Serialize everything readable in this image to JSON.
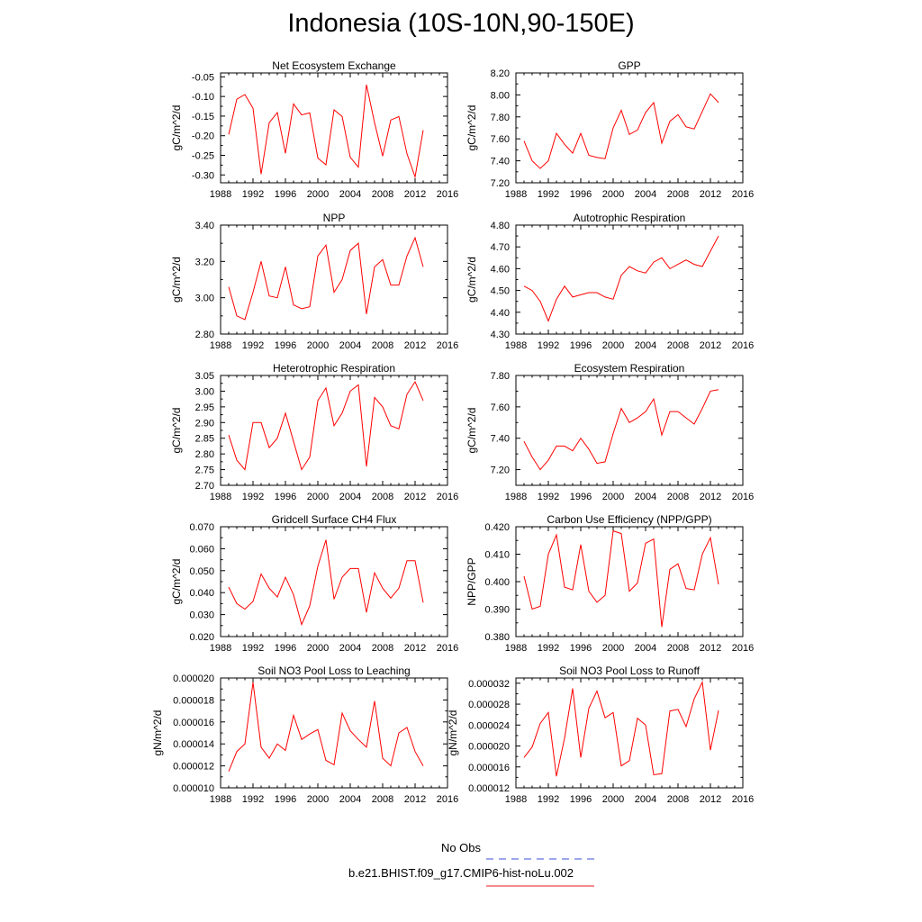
{
  "figure": {
    "title": "Indonesia (10S-10N,90-150E)",
    "legend": [
      {
        "label": "No Obs",
        "color": "#3b4fd8",
        "dash": true
      },
      {
        "label": "b.e21.BHIST.f09_g17.CMIP6-hist-noLu.002",
        "color": "#e8191e",
        "dash": false
      }
    ],
    "series_color": "#ff0000"
  },
  "chart_data": [
    {
      "type": "line",
      "title": "Net Ecosystem Exchange",
      "ylabel": "gC/m^2/d",
      "xlim": [
        1988,
        2016
      ],
      "ylim": [
        -0.32,
        -0.04
      ],
      "xticks": [
        "1988",
        "1992",
        "1996",
        "2000",
        "2004",
        "2008",
        "2012",
        "2016"
      ],
      "yticks": [
        "-0.05",
        "-0.10",
        "-0.15",
        "-0.20",
        "-0.25",
        "-0.30"
      ],
      "x": [
        1989,
        1990,
        1991,
        1992,
        1993,
        1994,
        1995,
        1996,
        1997,
        1998,
        1999,
        2000,
        2001,
        2002,
        2003,
        2004,
        2005,
        2006,
        2007,
        2008,
        2009,
        2010,
        2011,
        2012,
        2013
      ],
      "y": [
        -0.197,
        -0.107,
        -0.095,
        -0.13,
        -0.298,
        -0.167,
        -0.141,
        -0.245,
        -0.119,
        -0.147,
        -0.142,
        -0.257,
        -0.274,
        -0.134,
        -0.151,
        -0.255,
        -0.28,
        -0.07,
        -0.167,
        -0.252,
        -0.16,
        -0.151,
        -0.246,
        -0.305,
        -0.186
      ]
    },
    {
      "type": "line",
      "title": "GPP",
      "ylabel": "gC/m^2/d",
      "xlim": [
        1988,
        2016
      ],
      "ylim": [
        7.2,
        8.2
      ],
      "xticks": [
        "1988",
        "1992",
        "1996",
        "2000",
        "2004",
        "2008",
        "2012",
        "2016"
      ],
      "yticks": [
        "8.20",
        "8.00",
        "7.80",
        "7.60",
        "7.40",
        "7.20"
      ],
      "x": [
        1989,
        1990,
        1991,
        1992,
        1993,
        1994,
        1995,
        1996,
        1997,
        1998,
        1999,
        2000,
        2001,
        2002,
        2003,
        2004,
        2005,
        2006,
        2007,
        2008,
        2009,
        2010,
        2011,
        2012,
        2013
      ],
      "y": [
        7.58,
        7.4,
        7.33,
        7.4,
        7.65,
        7.55,
        7.47,
        7.65,
        7.45,
        7.43,
        7.42,
        7.7,
        7.86,
        7.64,
        7.68,
        7.84,
        7.93,
        7.56,
        7.76,
        7.82,
        7.71,
        7.69,
        7.85,
        8.01,
        7.93
      ]
    },
    {
      "type": "line",
      "title": "NPP",
      "ylabel": "gC/m^2/d",
      "xlim": [
        1988,
        2016
      ],
      "ylim": [
        2.8,
        3.4
      ],
      "xticks": [
        "1988",
        "1992",
        "1996",
        "2000",
        "2004",
        "2008",
        "2012",
        "2016"
      ],
      "yticks": [
        "3.40",
        "3.20",
        "3.00",
        "2.80"
      ],
      "x": [
        1989,
        1990,
        1991,
        1992,
        1993,
        1994,
        1995,
        1996,
        1997,
        1998,
        1999,
        2000,
        2001,
        2002,
        2003,
        2004,
        2005,
        2006,
        2007,
        2008,
        2009,
        2010,
        2011,
        2012,
        2013
      ],
      "y": [
        3.06,
        2.9,
        2.88,
        3.03,
        3.2,
        3.01,
        3.0,
        3.17,
        2.96,
        2.94,
        2.95,
        3.23,
        3.29,
        3.03,
        3.1,
        3.26,
        3.3,
        2.91,
        3.17,
        3.21,
        3.07,
        3.07,
        3.23,
        3.33,
        3.17
      ]
    },
    {
      "type": "line",
      "title": "Autotrophic Respiration",
      "ylabel": "gC/m^2/d",
      "xlim": [
        1988,
        2016
      ],
      "ylim": [
        4.3,
        4.8
      ],
      "xticks": [
        "1988",
        "1992",
        "1996",
        "2000",
        "2004",
        "2008",
        "2012",
        "2016"
      ],
      "yticks": [
        "4.80",
        "4.70",
        "4.60",
        "4.50",
        "4.40",
        "4.30"
      ],
      "x": [
        1989,
        1990,
        1991,
        1992,
        1993,
        1994,
        1995,
        1996,
        1997,
        1998,
        1999,
        2000,
        2001,
        2002,
        2003,
        2004,
        2005,
        2006,
        2007,
        2008,
        2009,
        2010,
        2011,
        2012,
        2013
      ],
      "y": [
        4.52,
        4.5,
        4.45,
        4.36,
        4.46,
        4.52,
        4.47,
        4.48,
        4.49,
        4.49,
        4.47,
        4.46,
        4.57,
        4.61,
        4.59,
        4.58,
        4.63,
        4.65,
        4.6,
        4.62,
        4.64,
        4.62,
        4.61,
        4.68,
        4.75
      ]
    },
    {
      "type": "line",
      "title": "Heterotrophic Respiration",
      "ylabel": "gC/m^2/d",
      "xlim": [
        1988,
        2016
      ],
      "ylim": [
        2.7,
        3.05
      ],
      "xticks": [
        "1988",
        "1992",
        "1996",
        "2000",
        "2004",
        "2008",
        "2012",
        "2016"
      ],
      "yticks": [
        "3.05",
        "3.00",
        "2.95",
        "2.90",
        "2.85",
        "2.80",
        "2.75",
        "2.70"
      ],
      "x": [
        1989,
        1990,
        1991,
        1992,
        1993,
        1994,
        1995,
        1996,
        1997,
        1998,
        1999,
        2000,
        2001,
        2002,
        2003,
        2004,
        2005,
        2006,
        2007,
        2008,
        2009,
        2010,
        2011,
        2012,
        2013
      ],
      "y": [
        2.86,
        2.78,
        2.75,
        2.9,
        2.9,
        2.82,
        2.85,
        2.93,
        2.84,
        2.75,
        2.79,
        2.97,
        3.01,
        2.89,
        2.93,
        3.0,
        3.02,
        2.76,
        2.98,
        2.95,
        2.89,
        2.88,
        2.99,
        3.03,
        2.97
      ]
    },
    {
      "type": "line",
      "title": "Ecosystem Respiration",
      "ylabel": "gC/m^2/d",
      "xlim": [
        1988,
        2016
      ],
      "ylim": [
        7.1,
        7.8
      ],
      "xticks": [
        "1988",
        "1992",
        "1996",
        "2000",
        "2004",
        "2008",
        "2012",
        "2016"
      ],
      "yticks": [
        "7.80",
        "7.60",
        "7.40",
        "7.20"
      ],
      "x": [
        1989,
        1990,
        1991,
        1992,
        1993,
        1994,
        1995,
        1996,
        1997,
        1998,
        1999,
        2000,
        2001,
        2002,
        2003,
        2004,
        2005,
        2006,
        2007,
        2008,
        2009,
        2010,
        2011,
        2012,
        2013
      ],
      "y": [
        7.38,
        7.28,
        7.2,
        7.26,
        7.35,
        7.35,
        7.32,
        7.4,
        7.33,
        7.24,
        7.25,
        7.43,
        7.59,
        7.5,
        7.53,
        7.57,
        7.65,
        7.42,
        7.57,
        7.57,
        7.53,
        7.49,
        7.59,
        7.7,
        7.71
      ]
    },
    {
      "type": "line",
      "title": "Gridcell Surface CH4 Flux",
      "ylabel": "gC/m^2/d",
      "xlim": [
        1988,
        2016
      ],
      "ylim": [
        0.02,
        0.07
      ],
      "xticks": [
        "1988",
        "1992",
        "1996",
        "2000",
        "2004",
        "2008",
        "2012",
        "2016"
      ],
      "yticks": [
        "0.070",
        "0.060",
        "0.050",
        "0.040",
        "0.030",
        "0.020"
      ],
      "x": [
        1989,
        1990,
        1991,
        1992,
        1993,
        1994,
        1995,
        1996,
        1997,
        1998,
        1999,
        2000,
        2001,
        2002,
        2003,
        2004,
        2005,
        2006,
        2007,
        2008,
        2009,
        2010,
        2011,
        2012,
        2013
      ],
      "y": [
        0.0425,
        0.035,
        0.0325,
        0.036,
        0.0485,
        0.042,
        0.038,
        0.047,
        0.039,
        0.0255,
        0.034,
        0.052,
        0.064,
        0.037,
        0.047,
        0.051,
        0.051,
        0.031,
        0.049,
        0.042,
        0.0375,
        0.042,
        0.0545,
        0.0545,
        0.0355
      ]
    },
    {
      "type": "line",
      "title": "Carbon Use Efficiency (NPP/GPP)",
      "ylabel": "NPP/GPP",
      "xlim": [
        1988,
        2016
      ],
      "ylim": [
        0.38,
        0.42
      ],
      "xticks": [
        "1988",
        "1992",
        "1996",
        "2000",
        "2004",
        "2008",
        "2012",
        "2016"
      ],
      "yticks": [
        "0.420",
        "0.410",
        "0.400",
        "0.390",
        "0.380"
      ],
      "x": [
        1989,
        1990,
        1991,
        1992,
        1993,
        1994,
        1995,
        1996,
        1997,
        1998,
        1999,
        2000,
        2001,
        2002,
        2003,
        2004,
        2005,
        2006,
        2007,
        2008,
        2009,
        2010,
        2011,
        2012,
        2013
      ],
      "y": [
        0.402,
        0.39,
        0.391,
        0.41,
        0.417,
        0.398,
        0.397,
        0.4135,
        0.3965,
        0.3925,
        0.395,
        0.4185,
        0.4175,
        0.3965,
        0.3995,
        0.414,
        0.4155,
        0.3835,
        0.4045,
        0.4065,
        0.3975,
        0.397,
        0.41,
        0.416,
        0.399
      ]
    },
    {
      "type": "line",
      "title": "Soil NO3 Pool Loss to Leaching",
      "ylabel": "gN/m^2/d",
      "xlim": [
        1988,
        2016
      ],
      "ylim": [
        1e-05,
        2e-05
      ],
      "xticks": [
        "1988",
        "1992",
        "1996",
        "2000",
        "2004",
        "2008",
        "2012",
        "2016"
      ],
      "yticks": [
        "0.000020",
        "0.000018",
        "0.000016",
        "0.000014",
        "0.000012",
        "0.000010"
      ],
      "x": [
        1989,
        1990,
        1991,
        1992,
        1993,
        1994,
        1995,
        1996,
        1997,
        1998,
        1999,
        2000,
        2001,
        2002,
        2003,
        2004,
        2005,
        2006,
        2007,
        2008,
        2009,
        2010,
        2011,
        2012,
        2013
      ],
      "y": [
        1.15e-05,
        1.33e-05,
        1.4e-05,
        1.96e-05,
        1.37e-05,
        1.27e-05,
        1.4e-05,
        1.34e-05,
        1.66e-05,
        1.44e-05,
        1.49e-05,
        1.53e-05,
        1.25e-05,
        1.21e-05,
        1.68e-05,
        1.52e-05,
        1.44e-05,
        1.37e-05,
        1.79e-05,
        1.27e-05,
        1.2e-05,
        1.5e-05,
        1.55e-05,
        1.33e-05,
        1.2e-05
      ]
    },
    {
      "type": "line",
      "title": "Soil NO3 Pool Loss to Runoff",
      "ylabel": "gN/m^2/d",
      "xlim": [
        1988,
        2016
      ],
      "ylim": [
        1.2e-05,
        3.3e-05
      ],
      "xticks": [
        "1988",
        "1992",
        "1996",
        "2000",
        "2004",
        "2008",
        "2012",
        "2016"
      ],
      "yticks": [
        "0.000032",
        "0.000028",
        "0.000024",
        "0.000020",
        "0.000016",
        "0.000012"
      ],
      "x": [
        1989,
        1990,
        1991,
        1992,
        1993,
        1994,
        1995,
        1996,
        1997,
        1998,
        1999,
        2000,
        2001,
        2002,
        2003,
        2004,
        2005,
        2006,
        2007,
        2008,
        2009,
        2010,
        2011,
        2012,
        2013
      ],
      "y": [
        1.78e-05,
        1.98e-05,
        2.43e-05,
        2.64e-05,
        1.42e-05,
        2.15e-05,
        3.1e-05,
        1.78e-05,
        2.72e-05,
        3.05e-05,
        2.54e-05,
        2.64e-05,
        1.62e-05,
        1.72e-05,
        2.53e-05,
        2.4e-05,
        1.45e-05,
        1.47e-05,
        2.67e-05,
        2.7e-05,
        2.37e-05,
        2.9e-05,
        3.22e-05,
        1.92e-05,
        2.68e-05
      ]
    }
  ]
}
